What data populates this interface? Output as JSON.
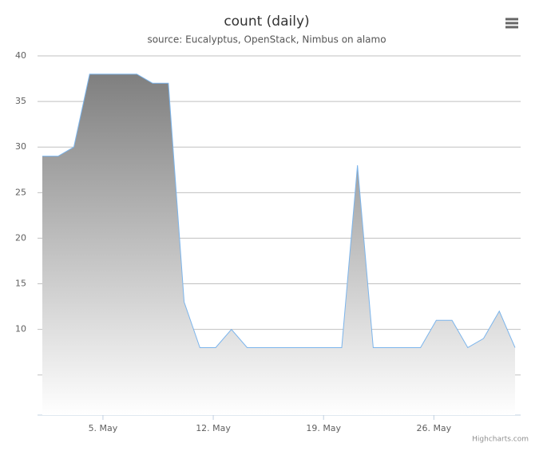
{
  "chart_data": {
    "type": "area",
    "title": "count (daily)",
    "subtitle": "source: Eucalyptus, OpenStack, Nimbus on alamo",
    "categories": [
      null,
      null,
      null,
      null,
      "5. May",
      null,
      null,
      null,
      null,
      null,
      null,
      "12. May",
      null,
      null,
      null,
      null,
      null,
      null,
      "19. May",
      null,
      null,
      null,
      null,
      null,
      null,
      "26. May",
      null,
      null,
      null,
      null,
      null
    ],
    "series": [
      {
        "color": "#7cb5ec",
        "values": [
          29,
          29,
          30,
          38,
          38,
          38,
          38,
          37,
          37,
          13,
          8,
          8,
          10,
          8,
          8,
          8,
          8,
          8,
          8,
          8,
          28,
          8,
          8,
          8,
          8,
          11,
          11,
          8,
          9,
          12,
          8
        ]
      }
    ],
    "ylim": [
      0.6,
      40
    ],
    "yticks": [
      {
        "value": 5,
        "label": null
      },
      10,
      15,
      20,
      25,
      30,
      35,
      40
    ],
    "grid": true,
    "credits": "Highcharts.com"
  }
}
